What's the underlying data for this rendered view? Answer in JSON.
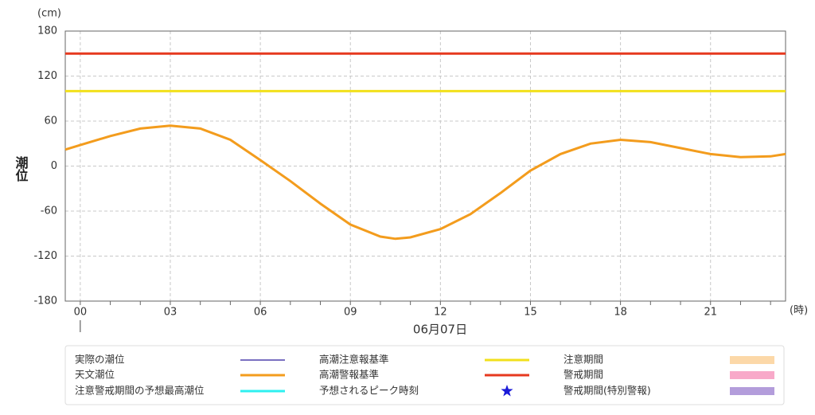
{
  "chart_data": {
    "type": "line",
    "y_label": "潮位",
    "y_unit": "(cm)",
    "x_unit": "(時)",
    "date_label": "06月07日",
    "xlim": [
      -0.5,
      23.5
    ],
    "xticks": [
      {
        "value": 0,
        "label": "00"
      },
      {
        "value": 3,
        "label": "03"
      },
      {
        "value": 6,
        "label": "06"
      },
      {
        "value": 9,
        "label": "09"
      },
      12,
      15,
      18,
      21
    ],
    "xticks_minor": [
      0,
      1,
      2,
      3,
      4,
      5,
      6,
      7,
      8,
      9,
      10,
      11,
      12,
      13,
      14,
      15,
      16,
      17,
      18,
      19,
      20,
      21,
      22,
      23
    ],
    "ylim": [
      -180,
      180
    ],
    "yticks": [
      -180,
      -120,
      -60,
      0,
      60,
      120,
      180
    ],
    "grid": true,
    "series": [
      {
        "name": "天文潮位",
        "color": "#f39c1d",
        "x": [
          -0.5,
          0,
          1,
          2,
          3,
          4,
          5,
          6,
          7,
          8,
          9,
          10,
          10.5,
          11,
          12,
          13,
          14,
          15,
          16,
          17,
          18,
          19,
          20,
          21,
          22,
          23,
          23.5
        ],
        "values": [
          22,
          28,
          40,
          50,
          54,
          50,
          35,
          8,
          -20,
          -50,
          -78,
          -94,
          -97,
          -95,
          -84,
          -64,
          -36,
          -6,
          16,
          30,
          35,
          32,
          24,
          16,
          12,
          13,
          16
        ]
      }
    ],
    "hlines": [
      {
        "name": "高潮注意報基準",
        "color": "#f2e01c",
        "value": 100
      },
      {
        "name": "高潮警報基準",
        "color": "#e6391f",
        "value": 150
      }
    ],
    "legend_only": [
      {
        "name": "実際の潮位",
        "color": "#2a1a9c",
        "symbol": "thin-line"
      },
      {
        "name": "注意警戒期間の予想最高潮位",
        "color": "#2ef0f0",
        "symbol": "line"
      },
      {
        "name": "予想されるピーク時刻",
        "color": "#1a1ad8",
        "symbol": "star"
      },
      {
        "name": "注意期間",
        "color": "#fcd8a8",
        "symbol": "box"
      },
      {
        "name": "警戒期間",
        "color": "#f8a9c9",
        "symbol": "box"
      },
      {
        "name": "警戒期間(特別警報)",
        "color": "#b39ddb",
        "symbol": "box"
      }
    ]
  }
}
